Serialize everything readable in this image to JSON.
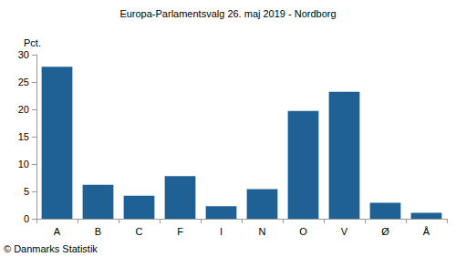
{
  "chart_data": {
    "type": "bar",
    "title": "Europa-Parlamentsvalg 26. maj 2019 - Nordborg",
    "y_label": "Pct.",
    "annotations": [
      "© Danmarks Statistik"
    ],
    "categories": [
      "A",
      "B",
      "C",
      "F",
      "I",
      "N",
      "O",
      "V",
      "Ø",
      "Å"
    ],
    "values": [
      27.8,
      6.2,
      4.2,
      7.8,
      2.3,
      5.4,
      19.7,
      23.2,
      2.9,
      1.1
    ],
    "color": "#1f6195",
    "ylim": [
      0,
      30
    ],
    "yticks": [
      0,
      5,
      10,
      15,
      20,
      25,
      30
    ],
    "grid": false
  }
}
